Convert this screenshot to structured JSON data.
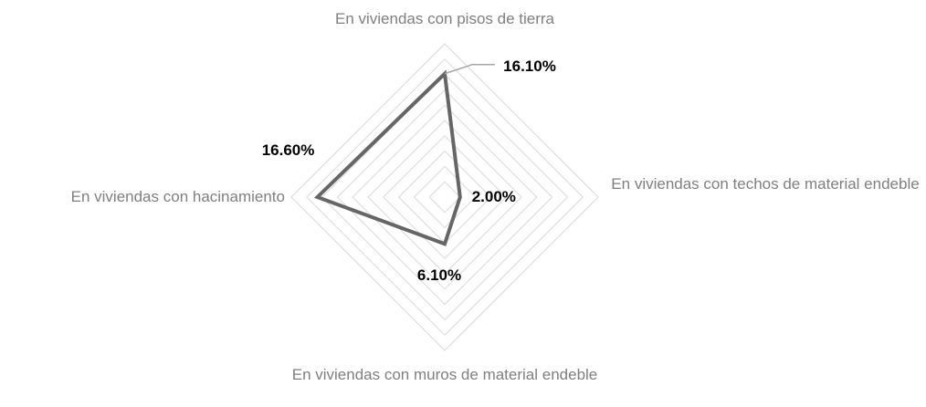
{
  "chart_data": {
    "type": "radar",
    "categories": [
      "En viviendas con pisos de tierra",
      "En viviendas con techos de material endeble",
      "En viviendas con muros de material endeble",
      "En viviendas con hacinamiento"
    ],
    "values": [
      16.1,
      2.0,
      6.1,
      16.6
    ],
    "value_labels": [
      "16.10%",
      "2.00%",
      "6.10%",
      "16.60%"
    ],
    "color": "#666666",
    "ylim": [
      0,
      20
    ],
    "yticks": [
      0,
      2,
      4,
      6,
      8,
      10,
      12,
      14,
      16,
      18,
      20
    ],
    "grid": true
  }
}
